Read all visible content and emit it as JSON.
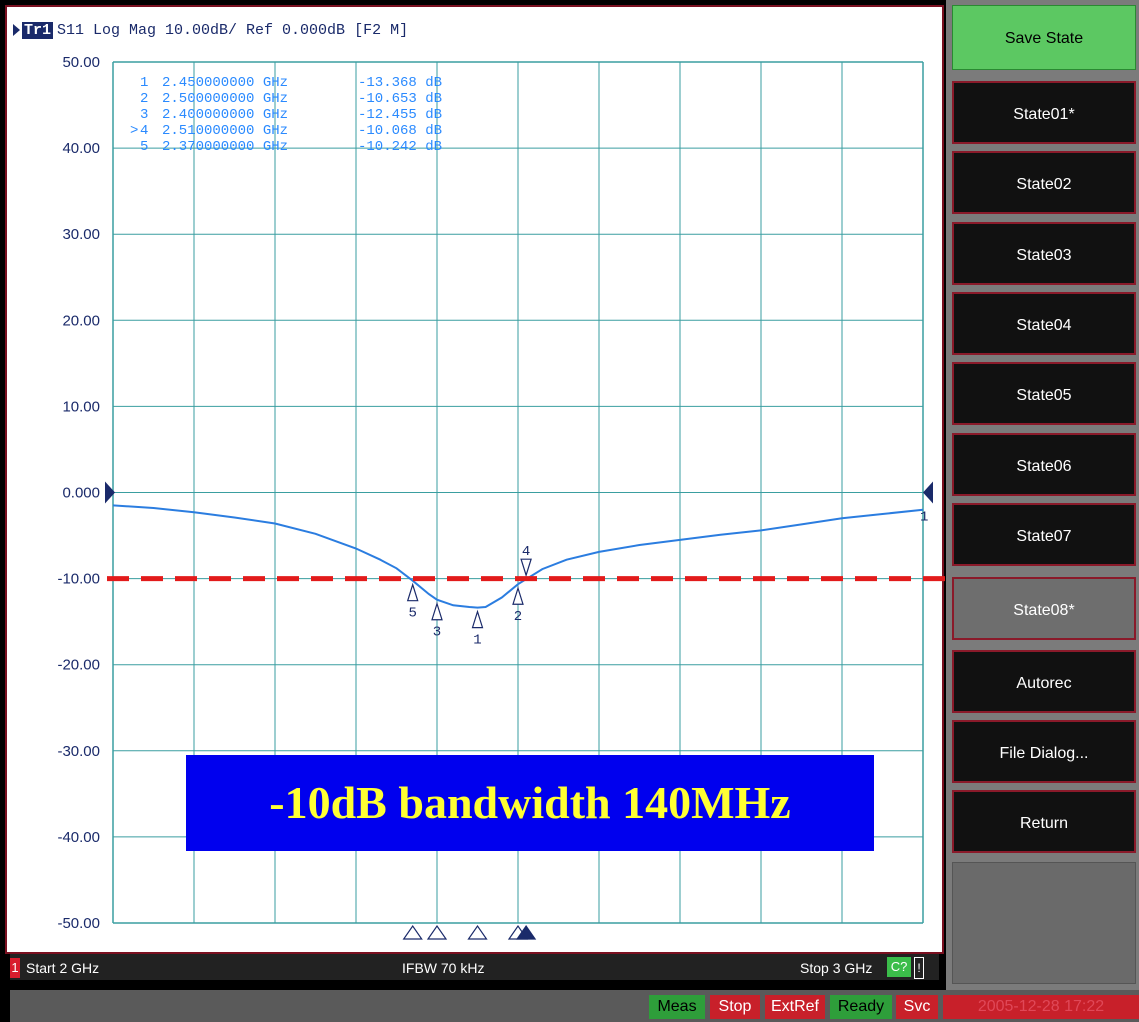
{
  "header": {
    "trace_badge": "Tr1",
    "trace_info": "S11 Log Mag 10.00dB/ Ref 0.000dB [F2 M]"
  },
  "chart_data": {
    "type": "line",
    "xlabel": "",
    "ylabel": "",
    "xlim": [
      2.0,
      3.0
    ],
    "ylim": [
      -50,
      50
    ],
    "yticks": [
      "50.00",
      "40.00",
      "30.00",
      "20.00",
      "10.00",
      "0.000",
      "-10.00",
      "-20.00",
      "-30.00",
      "-40.00",
      "-50.00"
    ],
    "grid": true,
    "series": [
      {
        "x": [
          2.0,
          2.05,
          2.1,
          2.15,
          2.2,
          2.25,
          2.3,
          2.33,
          2.35,
          2.37,
          2.39,
          2.4,
          2.42,
          2.44,
          2.45,
          2.46,
          2.48,
          2.5,
          2.51,
          2.53,
          2.56,
          2.6,
          2.65,
          2.7,
          2.75,
          2.8,
          2.85,
          2.9,
          2.95,
          3.0
        ],
        "y": [
          -1.5,
          -1.8,
          -2.3,
          -2.9,
          -3.6,
          -4.8,
          -6.5,
          -7.8,
          -8.8,
          -10.24,
          -11.8,
          -12.45,
          -13.1,
          -13.3,
          -13.37,
          -13.3,
          -12.2,
          -10.65,
          -10.07,
          -8.9,
          -7.8,
          -6.9,
          -6.1,
          -5.5,
          -4.9,
          -4.4,
          -3.7,
          -3.0,
          -2.5,
          -2.0
        ]
      }
    ],
    "markers": [
      {
        "id": "1",
        "freq": "2.450000000 GHz",
        "value": "-13.368 dB",
        "x": 2.45,
        "y": -13.368
      },
      {
        "id": "2",
        "freq": "2.500000000 GHz",
        "value": "-10.653 dB",
        "x": 2.5,
        "y": -10.653
      },
      {
        "id": "3",
        "freq": "2.400000000 GHz",
        "value": "-12.455 dB",
        "x": 2.4,
        "y": -12.455
      },
      {
        "id": "4",
        "freq": "2.510000000 GHz",
        "value": "-10.068 dB",
        "x": 2.51,
        "y": -10.068,
        "active": true
      },
      {
        "id": "5",
        "freq": "2.370000000 GHz",
        "value": "-10.242 dB",
        "x": 2.37,
        "y": -10.242
      }
    ],
    "active_marker_prefix": ">",
    "reference_line": {
      "y": -10,
      "color": "#e21b1b",
      "style": "dashed"
    },
    "reference_marker_label": "1",
    "annotation": "-10dB bandwidth 140MHz"
  },
  "bottom_bar": {
    "channel": "1",
    "start": "Start 2 GHz",
    "ifbw": "IFBW 70 kHz",
    "stop": "Stop 3 GHz",
    "cal": "C?",
    "flag": "!"
  },
  "status_bar": {
    "items": [
      {
        "label": "Meas",
        "bg": "#2e9e3a",
        "fg": "#000"
      },
      {
        "label": "Stop",
        "bg": "#c8202a",
        "fg": "#fff"
      },
      {
        "label": "ExtRef",
        "bg": "#c8202a",
        "fg": "#fff"
      },
      {
        "label": "Ready",
        "bg": "#2e9e3a",
        "fg": "#000"
      },
      {
        "label": "Svc",
        "bg": "#c8202a",
        "fg": "#fff"
      },
      {
        "label": "2005-12-28 17:22",
        "bg": "#c8202a",
        "fg": "#e04858"
      }
    ]
  },
  "softkeys": {
    "save_state": "Save State",
    "states": [
      "State01*",
      "State02",
      "State03",
      "State04",
      "State05",
      "State06",
      "State07",
      "State08*"
    ],
    "selected_index": 7,
    "autorec": "Autorec",
    "file_dialog": "File Dialog...",
    "return": "Return"
  },
  "colors": {
    "trace": "#2b7de0",
    "grid": "#3a9ea0",
    "reference": "#e21b1b",
    "marker": "#1a2a6a",
    "annotation_bg": "#0000ee",
    "annotation_fg": "#ffff33"
  }
}
